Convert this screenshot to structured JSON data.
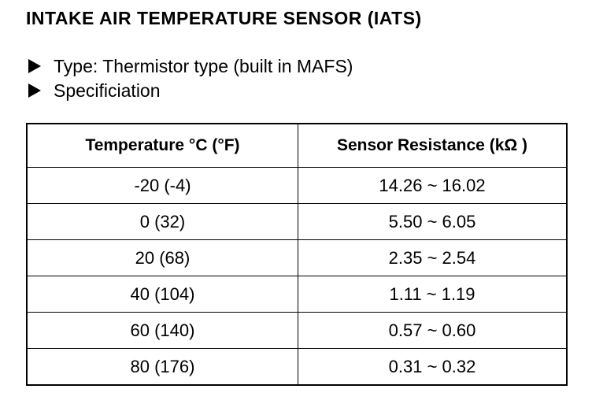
{
  "header": {
    "title": "INTAKE AIR TEMPERATURE SENSOR (IATS)"
  },
  "bullets": [
    "Type: Thermistor type (built in MAFS)",
    "Specificiation"
  ],
  "table": {
    "header": [
      "Temperature °C (°F)",
      "Sensor Resistance (kΩ )"
    ],
    "rows": [
      [
        "-20 (-4)",
        "14.26 ~ 16.02"
      ],
      [
        "0 (32)",
        "5.50 ~ 6.05"
      ],
      [
        "20 (68)",
        "2.35 ~ 2.54"
      ],
      [
        "40 (104)",
        "1.11 ~ 1.19"
      ],
      [
        "60 (140)",
        "0.57 ~ 0.60"
      ],
      [
        "80 (176)",
        "0.31 ~ 0.32"
      ]
    ]
  }
}
